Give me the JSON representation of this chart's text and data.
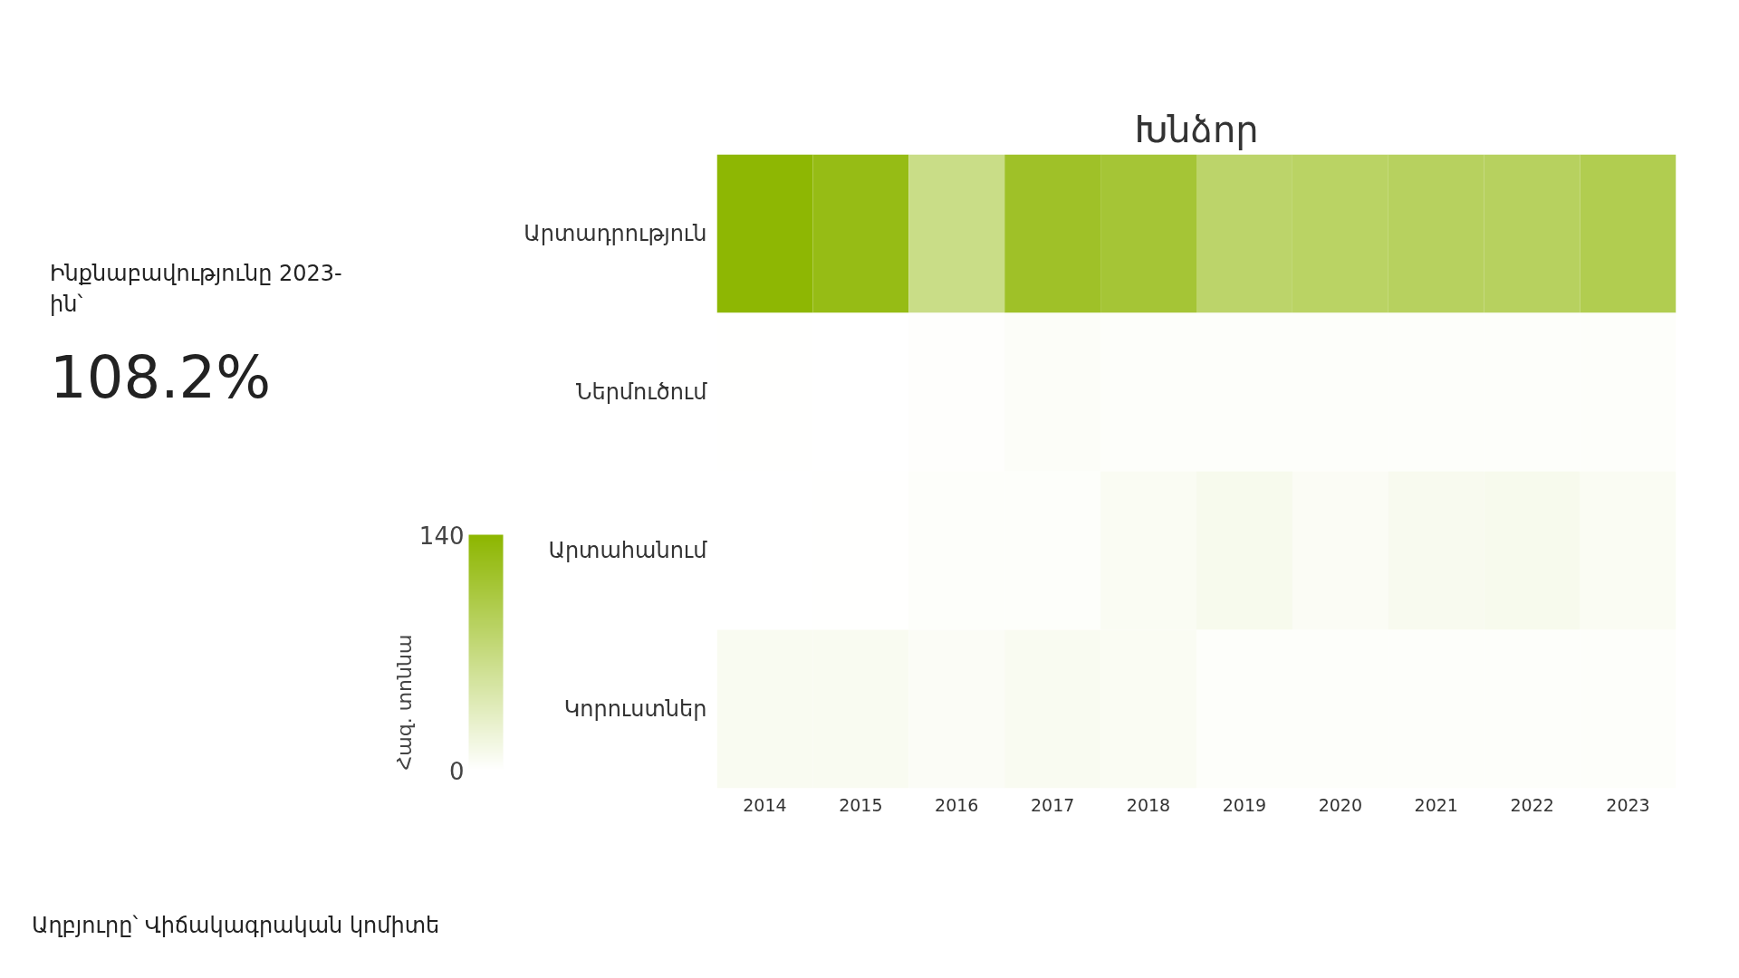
{
  "chart_data": {
    "type": "heatmap",
    "title": "Խնձոր",
    "categories": [
      "2014",
      "2015",
      "2016",
      "2017",
      "2018",
      "2019",
      "2020",
      "2021",
      "2022",
      "2023"
    ],
    "y_categories": [
      "Արտադրություն",
      "Ներմուծում",
      "Արտահանում",
      "Կորուստներ"
    ],
    "cells": [
      [
        138,
        128,
        66,
        118,
        110,
        82,
        85,
        88,
        88,
        96
      ],
      [
        1,
        0,
        2,
        4,
        3,
        3,
        3,
        3,
        3,
        3
      ],
      [
        0,
        1,
        3,
        3,
        7,
        10,
        6,
        9,
        10,
        7
      ],
      [
        8,
        8,
        5,
        8,
        7,
        3,
        3,
        3,
        3,
        3
      ]
    ],
    "colors": [
      "#ffffff",
      "#8db600"
    ],
    "clim": [
      0,
      140
    ],
    "cticks": [
      0,
      140
    ],
    "clabel": "Հազ. տոննա",
    "annotations": [
      "Ինքնաբավությունը 2023-ին՝",
      "108.2%",
      "Աղբյուրը՝ Վիճակագրական կոմիտե"
    ]
  }
}
